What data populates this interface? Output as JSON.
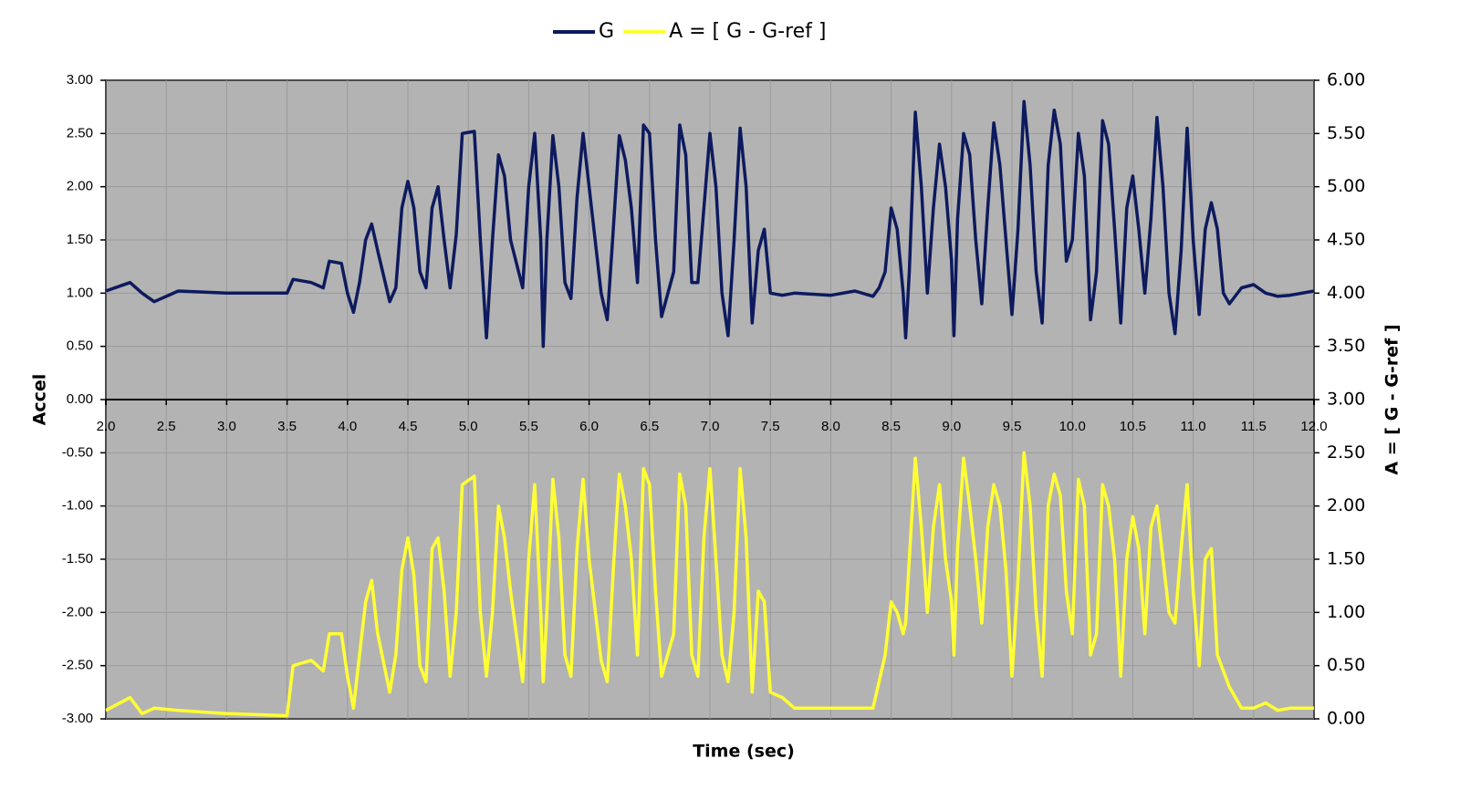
{
  "chart_data": {
    "type": "line",
    "x_label": "Time (sec)",
    "y_label": "Accel",
    "y2_label": "A = [ G - G-ref ]",
    "xlim": [
      2,
      12
    ],
    "xticks": [
      {
        "value": 2,
        "label": "2.0"
      },
      2.5,
      {
        "value": 3,
        "label": "3.0"
      },
      3.5,
      {
        "value": 4,
        "label": "4.0"
      },
      4.5,
      {
        "value": 5,
        "label": "5.0"
      },
      5.5,
      {
        "value": 6,
        "label": "6.0"
      },
      6.5,
      {
        "value": 7,
        "label": "7.0"
      },
      7.5,
      {
        "value": 8,
        "label": "8.0"
      },
      8.5,
      {
        "value": 9,
        "label": "9.0"
      },
      9.5,
      {
        "value": 10,
        "label": "10.0"
      },
      10.5,
      {
        "value": 11,
        "label": "11.0"
      },
      11.5,
      {
        "value": 12,
        "label": "12.0"
      }
    ],
    "ylim": [
      -3,
      3
    ],
    "yticks": [
      {
        "value": -3,
        "label": "-3.00"
      },
      {
        "value": -2.5,
        "label": "-2.50"
      },
      {
        "value": -2,
        "label": "-2.00"
      },
      {
        "value": -1.5,
        "label": "-1.50"
      },
      {
        "value": -1,
        "label": "-1.00"
      },
      {
        "value": -0.5,
        "label": "-0.50"
      },
      {
        "value": 0,
        "label": "0.00"
      },
      {
        "value": 0.5,
        "label": "0.50"
      },
      {
        "value": 1,
        "label": "1.00"
      },
      {
        "value": 1.5,
        "label": "1.50"
      },
      {
        "value": 2,
        "label": "2.00"
      },
      {
        "value": 2.5,
        "label": "2.50"
      },
      {
        "value": 3,
        "label": "3.00"
      }
    ],
    "y2lim": [
      0,
      6
    ],
    "y2ticks": [
      {
        "value": 0,
        "label": "0.00"
      },
      {
        "value": 0.5,
        "label": "0.50"
      },
      {
        "value": 1,
        "label": "1.00"
      },
      {
        "value": 1.5,
        "label": "1.50"
      },
      {
        "value": 2,
        "label": "2.00"
      },
      {
        "value": 2.5,
        "label": "2.50"
      },
      {
        "value": 3,
        "label": "3.00"
      },
      {
        "value": 3.5,
        "label": "3.50"
      },
      {
        "value": 4,
        "label": "4.00"
      },
      {
        "value": 4.5,
        "label": "4.50"
      },
      {
        "value": 5,
        "label": "5.00"
      },
      {
        "value": 5.5,
        "label": "5.50"
      },
      {
        "value": 6,
        "label": "6.00"
      }
    ],
    "grid": true,
    "x": [
      2.0,
      2.2,
      2.3,
      2.4,
      2.6,
      3.0,
      3.5,
      3.55,
      3.7,
      3.8,
      3.85,
      3.95,
      4.0,
      4.05,
      4.1,
      4.15,
      4.2,
      4.25,
      4.35,
      4.4,
      4.45,
      4.5,
      4.55,
      4.6,
      4.65,
      4.7,
      4.75,
      4.8,
      4.85,
      4.9,
      4.95,
      5.05,
      5.1,
      5.15,
      5.2,
      5.25,
      5.3,
      5.35,
      5.45,
      5.5,
      5.55,
      5.6,
      5.62,
      5.65,
      5.7,
      5.75,
      5.8,
      5.85,
      5.9,
      5.95,
      6.0,
      6.1,
      6.15,
      6.2,
      6.25,
      6.3,
      6.35,
      6.4,
      6.45,
      6.5,
      6.55,
      6.6,
      6.7,
      6.75,
      6.8,
      6.85,
      6.9,
      6.95,
      7.0,
      7.05,
      7.1,
      7.15,
      7.2,
      7.25,
      7.3,
      7.35,
      7.4,
      7.45,
      7.5,
      7.6,
      7.7,
      8.0,
      8.2,
      8.35,
      8.4,
      8.45,
      8.5,
      8.55,
      8.6,
      8.62,
      8.65,
      8.7,
      8.75,
      8.8,
      8.85,
      8.9,
      8.95,
      9.0,
      9.02,
      9.05,
      9.1,
      9.15,
      9.2,
      9.25,
      9.3,
      9.35,
      9.4,
      9.45,
      9.5,
      9.55,
      9.6,
      9.65,
      9.7,
      9.75,
      9.8,
      9.85,
      9.9,
      9.95,
      10.0,
      10.05,
      10.1,
      10.15,
      10.2,
      10.25,
      10.3,
      10.35,
      10.4,
      10.45,
      10.5,
      10.55,
      10.6,
      10.65,
      10.7,
      10.75,
      10.8,
      10.85,
      10.9,
      10.95,
      11.0,
      11.05,
      11.1,
      11.15,
      11.2,
      11.25,
      11.3,
      11.4,
      11.5,
      11.6,
      11.7,
      11.8,
      12.0
    ],
    "series": [
      {
        "name": "G",
        "color": "#0d1a5e",
        "values": [
          1.02,
          1.1,
          1.0,
          0.92,
          1.02,
          1.0,
          1.0,
          1.13,
          1.1,
          1.05,
          1.3,
          1.28,
          1.0,
          0.82,
          1.1,
          1.5,
          1.65,
          1.4,
          0.92,
          1.05,
          1.8,
          2.05,
          1.8,
          1.2,
          1.05,
          1.8,
          2.0,
          1.5,
          1.05,
          1.55,
          2.5,
          2.52,
          1.5,
          0.58,
          1.5,
          2.3,
          2.1,
          1.5,
          1.05,
          2.0,
          2.5,
          1.5,
          0.5,
          1.5,
          2.48,
          2.0,
          1.1,
          0.95,
          1.9,
          2.5,
          2.0,
          1.0,
          0.75,
          1.6,
          2.48,
          2.25,
          1.8,
          1.1,
          2.58,
          2.5,
          1.5,
          0.78,
          1.2,
          2.58,
          2.3,
          1.1,
          1.1,
          1.8,
          2.5,
          2.0,
          1.0,
          0.6,
          1.5,
          2.55,
          2.0,
          0.72,
          1.4,
          1.6,
          1.0,
          0.98,
          1.0,
          0.98,
          1.02,
          0.97,
          1.05,
          1.2,
          1.8,
          1.6,
          1.0,
          0.58,
          1.2,
          2.7,
          2.0,
          1.0,
          1.8,
          2.4,
          2.0,
          1.3,
          0.6,
          1.7,
          2.5,
          2.3,
          1.5,
          0.9,
          1.8,
          2.6,
          2.2,
          1.5,
          0.8,
          1.6,
          2.8,
          2.2,
          1.2,
          0.72,
          2.2,
          2.72,
          2.4,
          1.3,
          1.5,
          2.5,
          2.1,
          0.75,
          1.2,
          2.62,
          2.4,
          1.6,
          0.72,
          1.8,
          2.1,
          1.6,
          1.0,
          1.7,
          2.65,
          2.0,
          1.0,
          0.62,
          1.4,
          2.55,
          1.5,
          0.8,
          1.6,
          1.85,
          1.6,
          1.0,
          0.9,
          1.05,
          1.08,
          1.0,
          0.97,
          0.98,
          1.02
        ]
      },
      {
        "name": "A = [ G - G-ref ]",
        "color": "#ffff33",
        "axis": "y2",
        "values": [
          0.08,
          0.2,
          0.05,
          0.1,
          0.08,
          0.05,
          0.03,
          0.5,
          0.55,
          0.45,
          0.8,
          0.8,
          0.4,
          0.1,
          0.6,
          1.1,
          1.3,
          0.8,
          0.25,
          0.6,
          1.4,
          1.7,
          1.35,
          0.5,
          0.35,
          1.6,
          1.7,
          1.2,
          0.4,
          1.0,
          2.2,
          2.28,
          1.0,
          0.4,
          1.0,
          2.0,
          1.7,
          1.2,
          0.35,
          1.5,
          2.2,
          1.0,
          0.35,
          1.0,
          2.25,
          1.7,
          0.6,
          0.4,
          1.6,
          2.25,
          1.5,
          0.55,
          0.35,
          1.4,
          2.3,
          2.0,
          1.5,
          0.6,
          2.35,
          2.2,
          1.2,
          0.4,
          0.8,
          2.3,
          2.0,
          0.6,
          0.4,
          1.7,
          2.35,
          1.5,
          0.6,
          0.35,
          1.0,
          2.35,
          1.7,
          0.25,
          1.2,
          1.1,
          0.25,
          0.2,
          0.1,
          0.1,
          0.1,
          0.1,
          0.35,
          0.6,
          1.1,
          1.0,
          0.8,
          0.9,
          1.5,
          2.45,
          1.8,
          1.0,
          1.8,
          2.2,
          1.5,
          1.1,
          0.6,
          1.6,
          2.45,
          2.0,
          1.5,
          0.9,
          1.8,
          2.2,
          2.0,
          1.4,
          0.4,
          1.3,
          2.5,
          2.0,
          1.0,
          0.4,
          2.0,
          2.3,
          2.1,
          1.2,
          0.8,
          2.25,
          2.0,
          0.6,
          0.8,
          2.2,
          2.0,
          1.5,
          0.4,
          1.5,
          1.9,
          1.6,
          0.8,
          1.8,
          2.0,
          1.5,
          1.0,
          0.9,
          1.6,
          2.2,
          1.2,
          0.5,
          1.5,
          1.6,
          0.6,
          0.45,
          0.3,
          0.1,
          0.1,
          0.15,
          0.08,
          0.1,
          0.1
        ]
      }
    ]
  }
}
